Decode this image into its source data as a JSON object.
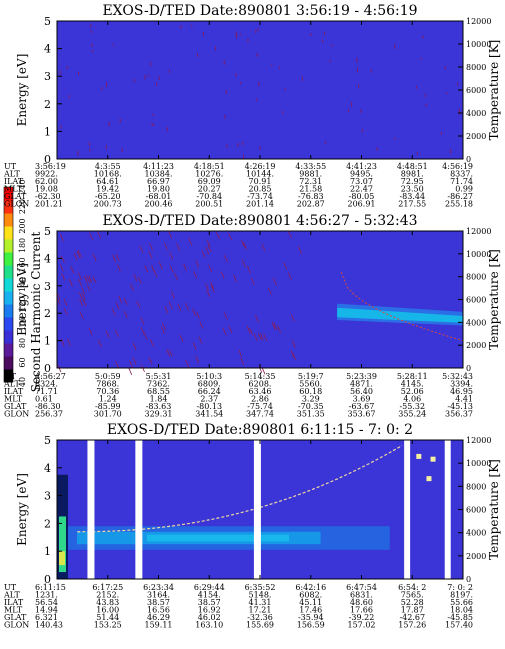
{
  "colorbar": {
    "label": "Second Harmonic Current",
    "ticks": [
      "40",
      "60",
      "80",
      "100",
      "120",
      "140",
      "160",
      "180",
      "200",
      "220",
      "240"
    ],
    "colors": [
      "#000000",
      "#4b0b5e",
      "#5b1a99",
      "#3b2fd6",
      "#2b49ef",
      "#1b7cf0",
      "#18b0ef",
      "#12d8d8",
      "#1fe08a",
      "#3ef03f",
      "#b2f02a",
      "#ffe11a",
      "#ff8a10",
      "#ff3010",
      "#ff0000"
    ]
  },
  "chart_data": [
    {
      "type": "heatmap",
      "title": "EXOS-D/TED   Date:890801  3:56:19 - 4:56:19",
      "ylabel": "Energy [eV]",
      "y2label": "Temperature [K]",
      "ylim": [
        0,
        5
      ],
      "yticks": [
        "0",
        "1",
        "2",
        "3",
        "4",
        "5"
      ],
      "y2lim": [
        0,
        12000
      ],
      "y2ticks": [
        "0",
        "2000",
        "4000",
        "6000",
        "8000",
        "10000",
        "12000"
      ],
      "background": "#3b34d6",
      "row_labels": [
        "UT",
        "ALT",
        "ILAT",
        "MLT",
        "GLAT",
        "GLON"
      ],
      "columns": [
        [
          "3:56:19",
          "9922.",
          "62.00",
          "19.08",
          "-62.30",
          "201.21"
        ],
        [
          "4:3:55",
          "10168.",
          "64.61",
          "19.42",
          "-65.20",
          "200.73"
        ],
        [
          "4:11:23",
          "10384.",
          "66.97",
          "19.80",
          "-68.01",
          "200.46"
        ],
        [
          "4:18:51",
          "10276.",
          "69.09",
          "20.27",
          "-70.84",
          "200.51"
        ],
        [
          "4:26:19",
          "10144.",
          "70.91",
          "20.85",
          "-73.74",
          "201.14"
        ],
        [
          "4:33:55",
          "9881.",
          "72.31",
          "21.58",
          "-76.83",
          "202.87"
        ],
        [
          "4:41:23",
          "9495.",
          "73.07",
          "22.47",
          "-80.05",
          "206.91"
        ],
        [
          "4:48:51",
          "8981.",
          "72.95",
          "23.50",
          "-83.44",
          "217.55"
        ],
        [
          "4:56:19",
          "8337.",
          "71.74",
          "0.99",
          "-86.27",
          "255.18"
        ]
      ]
    },
    {
      "type": "heatmap",
      "title": "EXOS-D/TED   Date:890801  4:56:27 - 5:32:43",
      "ylabel": "Energy [eV]",
      "y2label": "Temperature [K]",
      "ylim": [
        0,
        5
      ],
      "yticks": [
        "0",
        "1",
        "2",
        "3",
        "4",
        "5"
      ],
      "y2lim": [
        0,
        12000
      ],
      "y2ticks": [
        "0",
        "2000",
        "4000",
        "6000",
        "8000",
        "10000",
        "12000"
      ],
      "background": "#3b34d6",
      "row_labels": [
        "UT",
        "ALT",
        "ILAT",
        "MLT",
        "GLAT",
        "GLON"
      ],
      "columns": [
        [
          "4:56:27",
          "8324.",
          "71.71",
          "0.61",
          "-86.30",
          "256.37"
        ],
        [
          "5:0:59",
          "7868.",
          "70.36",
          "1.24",
          "-85.99",
          "301.70"
        ],
        [
          "5:5:31",
          "7362.",
          "68.55",
          "1.84",
          "-83.63",
          "329.31"
        ],
        [
          "5:10:3",
          "6809.",
          "66.24",
          "2.37",
          "-80.13",
          "341.54"
        ],
        [
          "5:14:35",
          "6208.",
          "63.46",
          "2.86",
          "-75.74",
          "347.74"
        ],
        [
          "5:19:7",
          "5560.",
          "60.18",
          "3.29",
          "-70.35",
          "351.35"
        ],
        [
          "5:23:39",
          "4871.",
          "56.40",
          "3.69",
          "-63.67",
          "353.67"
        ],
        [
          "5:28:11",
          "4145.",
          "52.06",
          "4.06",
          "-55.32",
          "355.24"
        ],
        [
          "5:32:43",
          "3394.",
          "46.95",
          "4.41",
          "-45.13",
          "356.37"
        ]
      ]
    },
    {
      "type": "heatmap",
      "title": "EXOS-D/TED   Date:890801  6:11:15 - 7: 0: 2",
      "ylabel": "Energy [eV]",
      "y2label": "Temperature [K]",
      "ylim": [
        0,
        5
      ],
      "yticks": [
        "0",
        "1",
        "2",
        "3",
        "4",
        "5"
      ],
      "y2lim": [
        0,
        12000
      ],
      "y2ticks": [
        "0",
        "2000",
        "4000",
        "6000",
        "8000",
        "10000",
        "12000"
      ],
      "background": "#3b34d6",
      "row_labels": [
        "UT",
        "ALT",
        "ILAT",
        "MLT",
        "GLAT",
        "GLON"
      ],
      "columns": [
        [
          "6:11:15",
          "1231.",
          "56.54",
          "14.94",
          "6.321",
          "140.43"
        ],
        [
          "6:17:25",
          "2152.",
          "43.83",
          "16.00",
          "51.44",
          "153.25"
        ],
        [
          "6:23:34",
          "3164.",
          "38.57",
          "16.56",
          "46.29",
          "159.11"
        ],
        [
          "6:29:44",
          "4154.",
          "38.57",
          "16.92",
          "46.02",
          "163.10"
        ],
        [
          "6:35:52",
          "5148.",
          "41.31",
          "17.21",
          "-32.36",
          "155.69"
        ],
        [
          "6:42:16",
          "6082.",
          "45.11",
          "17.46",
          "-35.94",
          "156.59"
        ],
        [
          "6:47:54",
          "6831.",
          "48.60",
          "17.66",
          "-39.22",
          "157.02"
        ],
        [
          "6:54: 2",
          "7565.",
          "52.28",
          "17.87",
          "-42.67",
          "157.26"
        ],
        [
          "7: 0: 2",
          "8197.",
          "55.66",
          "18.04",
          "-45.85",
          "157.40"
        ]
      ]
    }
  ]
}
